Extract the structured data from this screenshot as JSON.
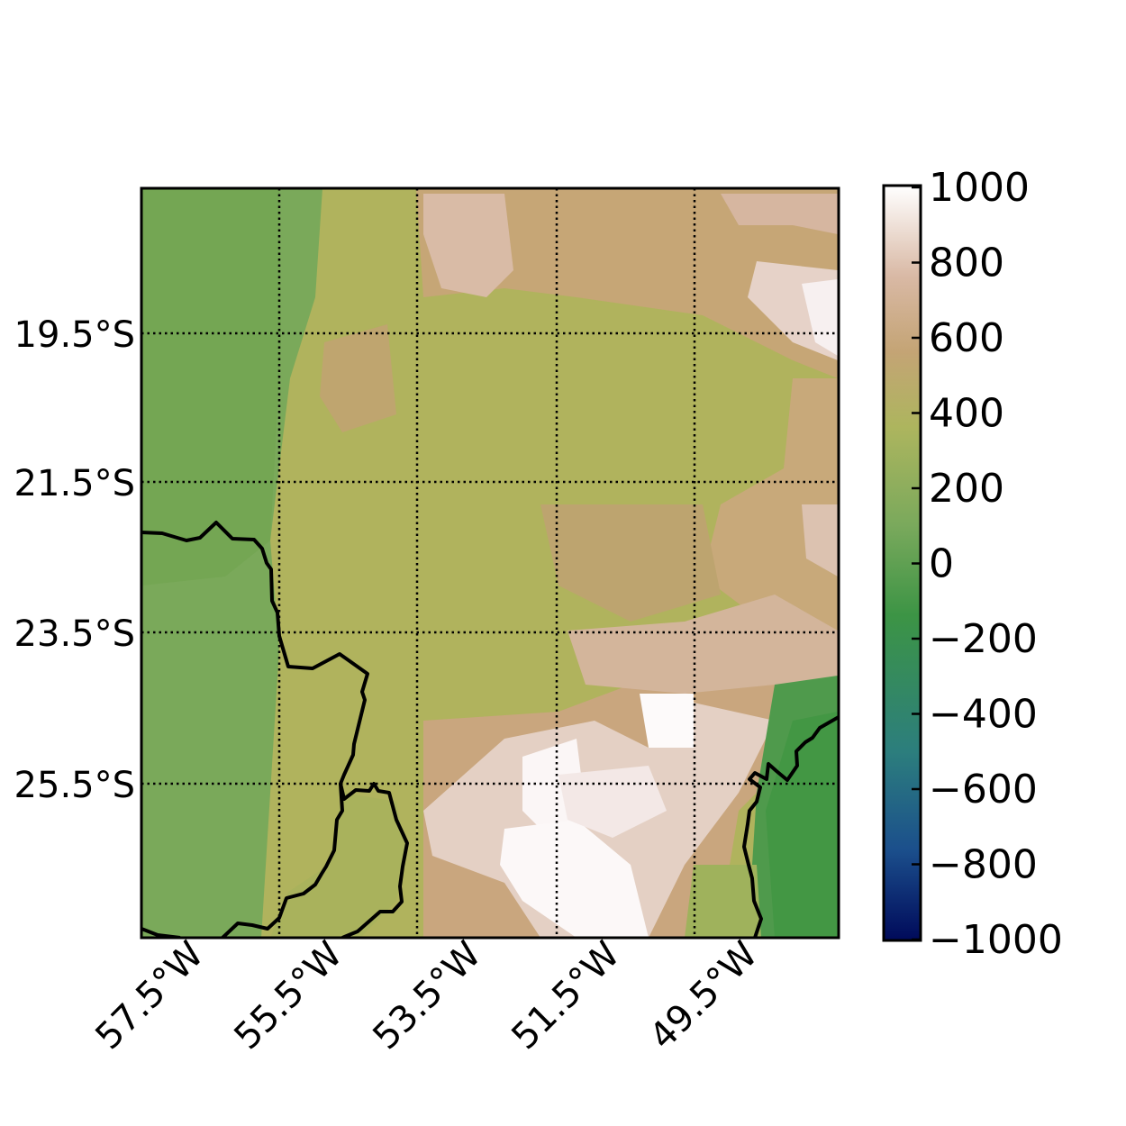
{
  "map": {
    "lat_labels": [
      "19.5°S",
      "21.5°S",
      "23.5°S",
      "25.5°S"
    ],
    "lon_labels": [
      "57.5°W",
      "55.5°W",
      "53.5°W",
      "51.5°W",
      "49.5°W"
    ],
    "grid_style": "dotted",
    "colormap": "gist_earth-like (navy → teal → green → olive → tan → white)"
  },
  "colorbar": {
    "ticks": [
      "1000",
      "800",
      "600",
      "400",
      "200",
      "0",
      "−200",
      "−400",
      "−600",
      "−800",
      "−1000"
    ],
    "range": [
      -1000,
      1000
    ],
    "colors": [
      "#000a5a",
      "#1b4f8c",
      "#2c7e7d",
      "#3c9445",
      "#7aa95c",
      "#adb55e",
      "#c4a475",
      "#d9b9a5",
      "#f2e6e6",
      "#ffffff"
    ]
  }
}
